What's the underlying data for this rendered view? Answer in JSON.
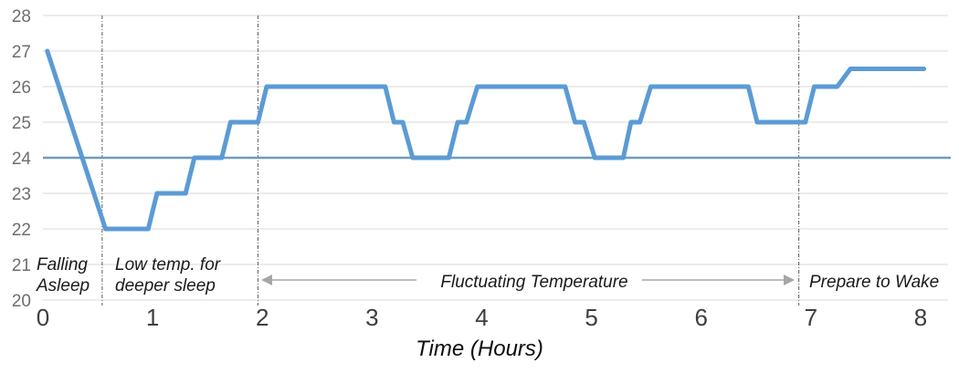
{
  "chart_data": {
    "type": "line",
    "title": "",
    "xlabel": "Time (Hours)",
    "ylabel": "",
    "xlim": [
      0,
      8.25
    ],
    "ylim": [
      20,
      28
    ],
    "x_ticks": [
      0,
      1,
      2,
      3,
      4,
      5,
      6,
      7,
      8
    ],
    "y_ticks": [
      20,
      21,
      22,
      23,
      24,
      25,
      26,
      27,
      28
    ],
    "grid": "horizontal",
    "legend": "none",
    "series": [
      {
        "name": "temperature",
        "color": "#5b9bd5",
        "stroke_width": 5,
        "points": [
          [
            0.04,
            27
          ],
          [
            0.57,
            22
          ],
          [
            0.96,
            22
          ],
          [
            1.04,
            23
          ],
          [
            1.3,
            23
          ],
          [
            1.38,
            24
          ],
          [
            1.63,
            24
          ],
          [
            1.71,
            25
          ],
          [
            1.96,
            25
          ],
          [
            2.04,
            26
          ],
          [
            3.12,
            26
          ],
          [
            3.2,
            25
          ],
          [
            3.28,
            25
          ],
          [
            3.37,
            24
          ],
          [
            3.7,
            24
          ],
          [
            3.78,
            25
          ],
          [
            3.86,
            25
          ],
          [
            3.96,
            26
          ],
          [
            4.76,
            26
          ],
          [
            4.85,
            25
          ],
          [
            4.93,
            25
          ],
          [
            5.03,
            24
          ],
          [
            5.29,
            24
          ],
          [
            5.36,
            25
          ],
          [
            5.44,
            25
          ],
          [
            5.54,
            26
          ],
          [
            6.43,
            26
          ],
          [
            6.51,
            25
          ],
          [
            6.95,
            25
          ],
          [
            7.03,
            26
          ],
          [
            7.24,
            26
          ],
          [
            7.36,
            26.5
          ],
          [
            8.03,
            26.5
          ]
        ]
      }
    ],
    "reference_line": {
      "y": 24,
      "color": "#6d9cbe",
      "stroke_width": 2.5
    },
    "phase_lines": {
      "style": "dash-dot",
      "color": "#595959",
      "x_values": [
        0.54,
        1.96,
        6.89
      ]
    },
    "annotations": [
      {
        "id": "falling-asleep",
        "lines": [
          "Falling",
          "Asleep"
        ]
      },
      {
        "id": "low-temp",
        "lines": [
          "Low temp. for",
          "deeper sleep"
        ]
      },
      {
        "id": "fluctuating",
        "lines": [
          "Fluctuating Temperature"
        ]
      },
      {
        "id": "prepare-wake",
        "lines": [
          "Prepare to Wake"
        ]
      }
    ],
    "arrow": {
      "style": "double-headed",
      "color": "#a6a6a6",
      "region": "fluctuating-temperature"
    },
    "colors": {
      "series": "#5b9bd5",
      "reference": "#6d9cbe",
      "grid": "#d9d9d9",
      "phase_line": "#595959",
      "arrow": "#a6a6a6",
      "x_tick": "#3f3f3f",
      "y_tick": "#6e6e6e"
    }
  }
}
